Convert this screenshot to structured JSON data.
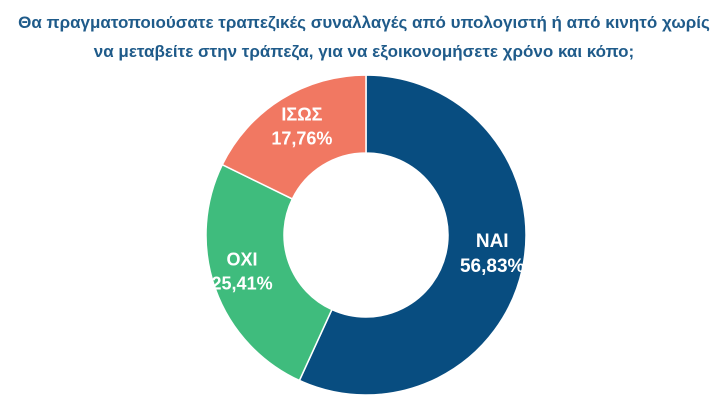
{
  "title_lines": [
    "Θα πραγματοποιούσατε τραπεζικές συναλλαγές από υπολογιστή ή από κινητό χωρίς",
    "να μεταβείτε στην τράπεζα, για να εξοικονομήσετε χρόνο και κόπο;"
  ],
  "chart_data": {
    "type": "pie",
    "donut": true,
    "title": "Θα πραγματοποιούσατε τραπεζικές συναλλαγές από υπολογιστή ή από κινητό χωρίς να μεταβείτε στην τράπεζα, για να εξοικονομήσετε χρόνο και κόπο;",
    "slices": [
      {
        "name": "ΝΑΙ",
        "value": 56.83,
        "label": "56,83%",
        "color": "#084d80"
      },
      {
        "name": "ΟΧΙ",
        "value": 25.41,
        "label": "25,41%",
        "color": "#3fbc7d"
      },
      {
        "name": "ΙΣΩΣ",
        "value": 17.76,
        "label": "17,76%",
        "color": "#f17862"
      }
    ]
  }
}
